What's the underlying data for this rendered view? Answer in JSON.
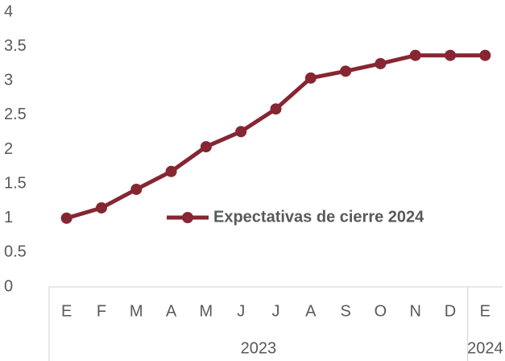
{
  "chart_data": {
    "type": "line",
    "categories": [
      "E",
      "F",
      "M",
      "A",
      "M",
      "J",
      "J",
      "A",
      "S",
      "O",
      "N",
      "D",
      "E"
    ],
    "x_groups": [
      {
        "label": "2023",
        "count": 12
      },
      {
        "label": "2024",
        "count": 1
      }
    ],
    "series": [
      {
        "name": "Expectativas de cierre 2024",
        "color": "#862633",
        "values": [
          1.0,
          1.15,
          1.42,
          1.68,
          2.04,
          2.26,
          2.59,
          3.04,
          3.14,
          3.25,
          3.37,
          3.37,
          3.37
        ]
      }
    ],
    "ylim": [
      0,
      4
    ],
    "yticks": [
      0,
      0.5,
      1,
      1.5,
      2,
      2.5,
      3,
      3.5,
      4
    ],
    "grid": false
  }
}
